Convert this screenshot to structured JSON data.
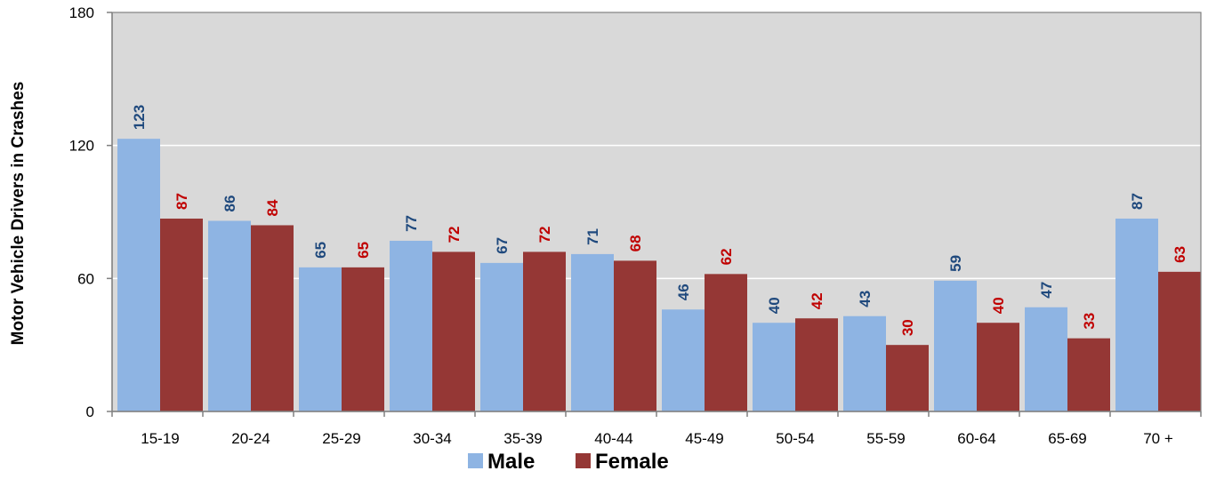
{
  "chart_data": {
    "type": "bar",
    "title": "",
    "xlabel": "",
    "ylabel": "Motor Vehicle Drivers in Crashes",
    "categories": [
      "15-19",
      "20-24",
      "25-29",
      "30-34",
      "35-39",
      "40-44",
      "45-49",
      "50-54",
      "55-59",
      "60-64",
      "65-69",
      "70 +"
    ],
    "series": [
      {
        "name": "Male",
        "values": [
          123,
          86,
          65,
          77,
          67,
          71,
          46,
          40,
          43,
          59,
          47,
          87
        ],
        "labels": [
          "123",
          "86",
          "65",
          "77",
          "67",
          "71",
          "46",
          "40",
          "43",
          "59",
          "47",
          "87"
        ],
        "color": "#8EB4E3",
        "label_color": "#1F497D"
      },
      {
        "name": "Female",
        "values": [
          87,
          84,
          65,
          72,
          72,
          68,
          62,
          42,
          30,
          40,
          33,
          63
        ],
        "labels": [
          "87",
          "84",
          "65",
          "72",
          "72",
          "68",
          "62",
          "42",
          "30",
          "40",
          "33",
          "63"
        ],
        "color": "#953735",
        "label_color": "#C00000"
      }
    ],
    "ylim": [
      0,
      180
    ],
    "yticks": [
      "0",
      "60",
      "120",
      "180"
    ],
    "grid": true,
    "plot_background": "#D9D9D9",
    "gridline_color": "#FFFFFF",
    "legend_position": "bottom"
  }
}
